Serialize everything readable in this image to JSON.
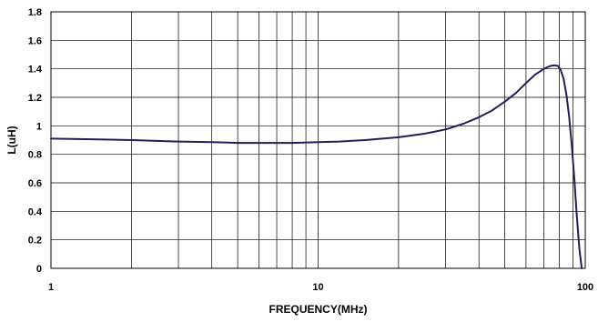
{
  "chart_data": {
    "type": "line",
    "title": "",
    "xlabel": "FREQUENCY(MHz)",
    "ylabel": "L(uH)",
    "x_scale": "log",
    "xlim": [
      1,
      100
    ],
    "ylim": [
      0,
      1.8
    ],
    "x_ticks": [
      1,
      10,
      100
    ],
    "x_tick_labels": [
      "1",
      "10",
      "100"
    ],
    "y_ticks": [
      0,
      0.2,
      0.4,
      0.6,
      0.8,
      1,
      1.2,
      1.4,
      1.6,
      1.8
    ],
    "y_tick_labels": [
      "0",
      "0.2",
      "0.4",
      "0.6",
      "0.8",
      "1",
      "1.2",
      "1.4",
      "1.6",
      "1.8"
    ],
    "grid": true,
    "legend": "none",
    "colors": {
      "line": "#1f1f5c",
      "grid": "#000000",
      "background": "#ffffff"
    },
    "series": [
      {
        "x": [
          1,
          1.5,
          2,
          3,
          4,
          5,
          6,
          7,
          8,
          10,
          12,
          15,
          20,
          25,
          30,
          35,
          40,
          45,
          50,
          55,
          60,
          65,
          70,
          74,
          77,
          79,
          81,
          83,
          85,
          87,
          89,
          91,
          93,
          95,
          97
        ],
        "y": [
          0.91,
          0.905,
          0.9,
          0.89,
          0.885,
          0.88,
          0.88,
          0.88,
          0.88,
          0.885,
          0.89,
          0.9,
          0.92,
          0.945,
          0.975,
          1.015,
          1.06,
          1.11,
          1.17,
          1.23,
          1.3,
          1.36,
          1.4,
          1.42,
          1.425,
          1.42,
          1.39,
          1.33,
          1.22,
          1.07,
          0.87,
          0.63,
          0.37,
          0.14,
          0.0
        ]
      }
    ]
  }
}
